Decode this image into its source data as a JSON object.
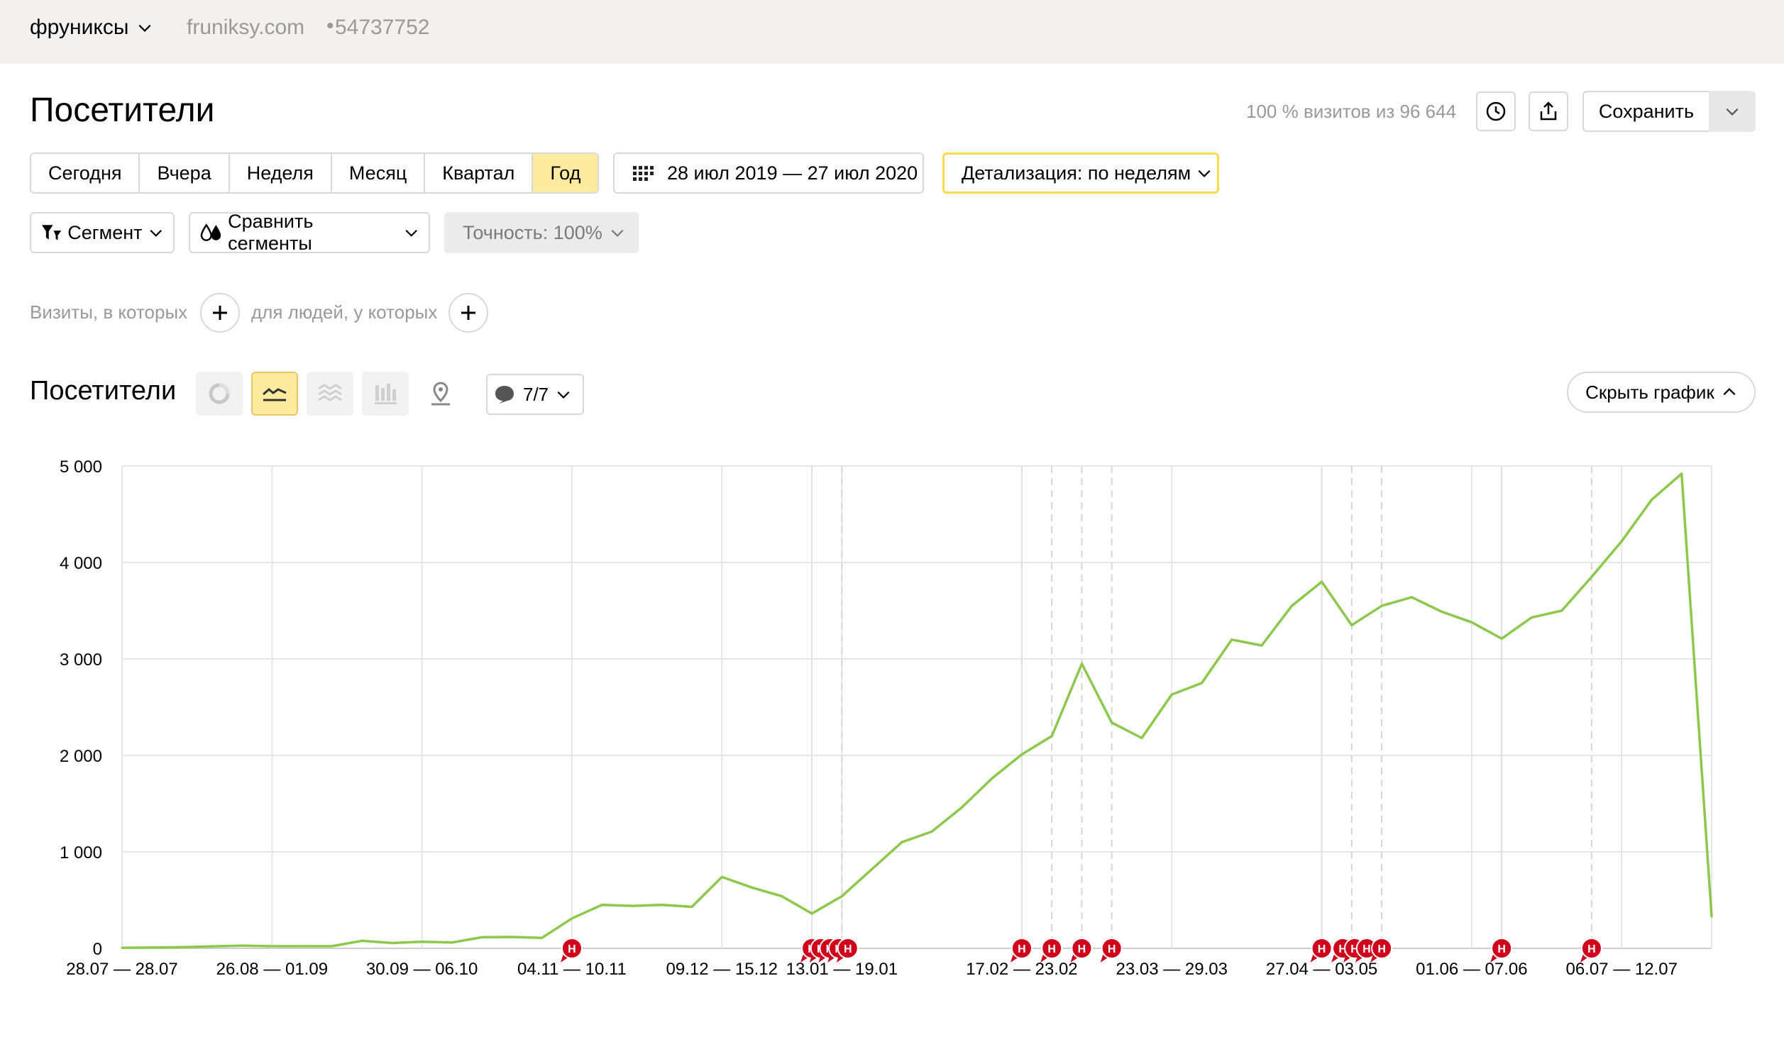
{
  "topbar": {
    "counter_name": "фруниксы",
    "site": "fruniksy.com",
    "separator": "•",
    "counter_id": "54737752"
  },
  "header": {
    "title": "Посетители",
    "visits_info": "100 % визитов из 96 644",
    "save_label": "Сохранить"
  },
  "periods": [
    "Сегодня",
    "Вчера",
    "Неделя",
    "Месяц",
    "Квартал",
    "Год"
  ],
  "active_period": "Год",
  "date_range": "28 июл 2019 — 27 июл 2020",
  "detail_label": "Детализация: по неделям",
  "segment_label": "Сегмент",
  "compare_label": "Сравнить сегменты",
  "accuracy_label": "Точность: 100%",
  "conditions": {
    "visits_label": "Визиты, в которых",
    "people_label": "для людей, у которых"
  },
  "chart_header": {
    "title": "Посетители",
    "notes_count": "7/7",
    "hide_label": "Скрыть график"
  },
  "colors": {
    "line": "#8cc84b",
    "note_marker": "#d0021b",
    "accent": "#ffeba0",
    "accent_border": "#ffdb4d"
  },
  "icons": [
    "chevron-down-icon",
    "history-icon",
    "export-icon",
    "calendar-icon",
    "filter-icon",
    "compare-icon",
    "pie-chart-icon",
    "line-chart-icon",
    "area-chart-icon",
    "bar-chart-icon",
    "map-icon",
    "comment-icon",
    "plus-icon",
    "chevron-up-icon"
  ],
  "chart_data": {
    "type": "line",
    "title": "",
    "xlabel": "",
    "ylabel": "",
    "ylim": [
      0,
      5000
    ],
    "y_ticks": [
      "0",
      "1 000",
      "2 000",
      "3 000",
      "4 000",
      "5 000"
    ],
    "x_tick_labels": [
      "28.07 — 28.07",
      "26.08 — 01.09",
      "30.09 — 06.10",
      "04.11 — 10.11",
      "09.12 — 15.12",
      "13.01 — 19.01",
      "17.02 — 23.02",
      "23.03 — 29.03",
      "27.04 — 03.05",
      "01.06 — 07.06",
      "06.07 — 12.07"
    ],
    "x_tick_index": [
      0,
      5,
      10,
      15,
      20,
      24,
      30,
      35,
      40,
      45,
      50
    ],
    "grid": true,
    "series": [
      {
        "values": [
          5,
          8,
          12,
          20,
          28,
          22,
          22,
          22,
          78,
          55,
          68,
          60,
          115,
          118,
          108,
          310,
          450,
          440,
          450,
          430,
          740,
          630,
          540,
          360,
          540,
          820,
          1100,
          1210,
          1460,
          1760,
          2010,
          2200,
          2950,
          2340,
          2180,
          2630,
          2750,
          3200,
          3140,
          3550,
          3800,
          3350,
          3550,
          3640,
          3490,
          3380,
          3210,
          3430,
          3500,
          3850,
          4220,
          4650,
          4920,
          330
        ]
      }
    ],
    "notes": {
      "label": "Н",
      "solid_lines_at_index": [
        23,
        30,
        40,
        46
      ],
      "dashed_lines_at_index": [
        24,
        31,
        32,
        33,
        41,
        42,
        49
      ],
      "markers_at_index": [
        15,
        23,
        23.3,
        23.6,
        23.9,
        24.2,
        30,
        31,
        32,
        33,
        40,
        40.7,
        41.1,
        41.5,
        42,
        46,
        49
      ]
    }
  }
}
